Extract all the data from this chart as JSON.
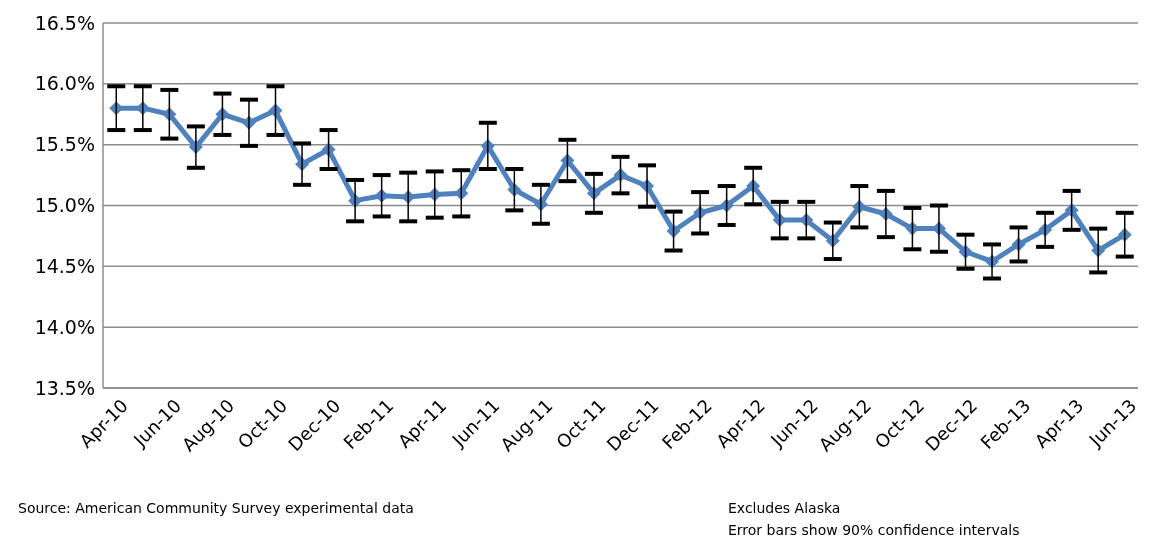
{
  "chart_data": {
    "type": "line",
    "categories": [
      "Apr-10",
      null,
      "Jun-10",
      null,
      "Aug-10",
      null,
      "Oct-10",
      null,
      "Dec-10",
      null,
      "Feb-11",
      null,
      "Apr-11",
      null,
      "Jun-11",
      null,
      "Aug-11",
      null,
      "Oct-11",
      null,
      "Dec-11",
      null,
      "Feb-12",
      null,
      "Apr-12",
      null,
      "Jun-12",
      null,
      "Aug-12",
      null,
      "Oct-12",
      null,
      "Dec-12",
      null,
      "Feb-13",
      null,
      "Apr-13",
      null,
      "Jun-13"
    ],
    "series": [
      {
        "color": "#4f81bd",
        "values": [
          15.8,
          15.8,
          15.75,
          15.48,
          15.75,
          15.68,
          15.78,
          15.34,
          15.46,
          15.04,
          15.08,
          15.07,
          15.09,
          15.1,
          15.49,
          15.13,
          15.01,
          15.37,
          15.1,
          15.25,
          15.16,
          14.79,
          14.94,
          15.0,
          15.16,
          14.88,
          14.88,
          14.71,
          14.99,
          14.93,
          14.81,
          14.81,
          14.62,
          14.54,
          14.68,
          14.8,
          14.96,
          14.63,
          14.76
        ],
        "errors": [
          0.18,
          0.18,
          0.2,
          0.17,
          0.17,
          0.19,
          0.2,
          0.17,
          0.16,
          0.17,
          0.17,
          0.2,
          0.19,
          0.19,
          0.19,
          0.17,
          0.16,
          0.17,
          0.16,
          0.15,
          0.17,
          0.16,
          0.17,
          0.16,
          0.15,
          0.15,
          0.15,
          0.15,
          0.17,
          0.19,
          0.17,
          0.19,
          0.14,
          0.14,
          0.14,
          0.14,
          0.16,
          0.18,
          0.18
        ]
      }
    ],
    "ylim": [
      13.5,
      16.5
    ],
    "yticks": [
      {
        "value": 13.5,
        "label": "13.5%"
      },
      {
        "value": 14,
        "label": "14.0%"
      },
      {
        "value": 14.5,
        "label": "14.5%"
      },
      {
        "value": 15,
        "label": "15.0%"
      },
      {
        "value": 15.5,
        "label": "15.5%"
      },
      {
        "value": 16,
        "label": "16.0%"
      },
      {
        "value": 16.5,
        "label": "16.5%"
      }
    ],
    "grid": "y",
    "marker": "diamond",
    "line_style": "solid",
    "annotations": [
      "Source: American Community Survey experimental data",
      "Excludes Alaska",
      "Error bars show 90% confidence intervals"
    ]
  }
}
